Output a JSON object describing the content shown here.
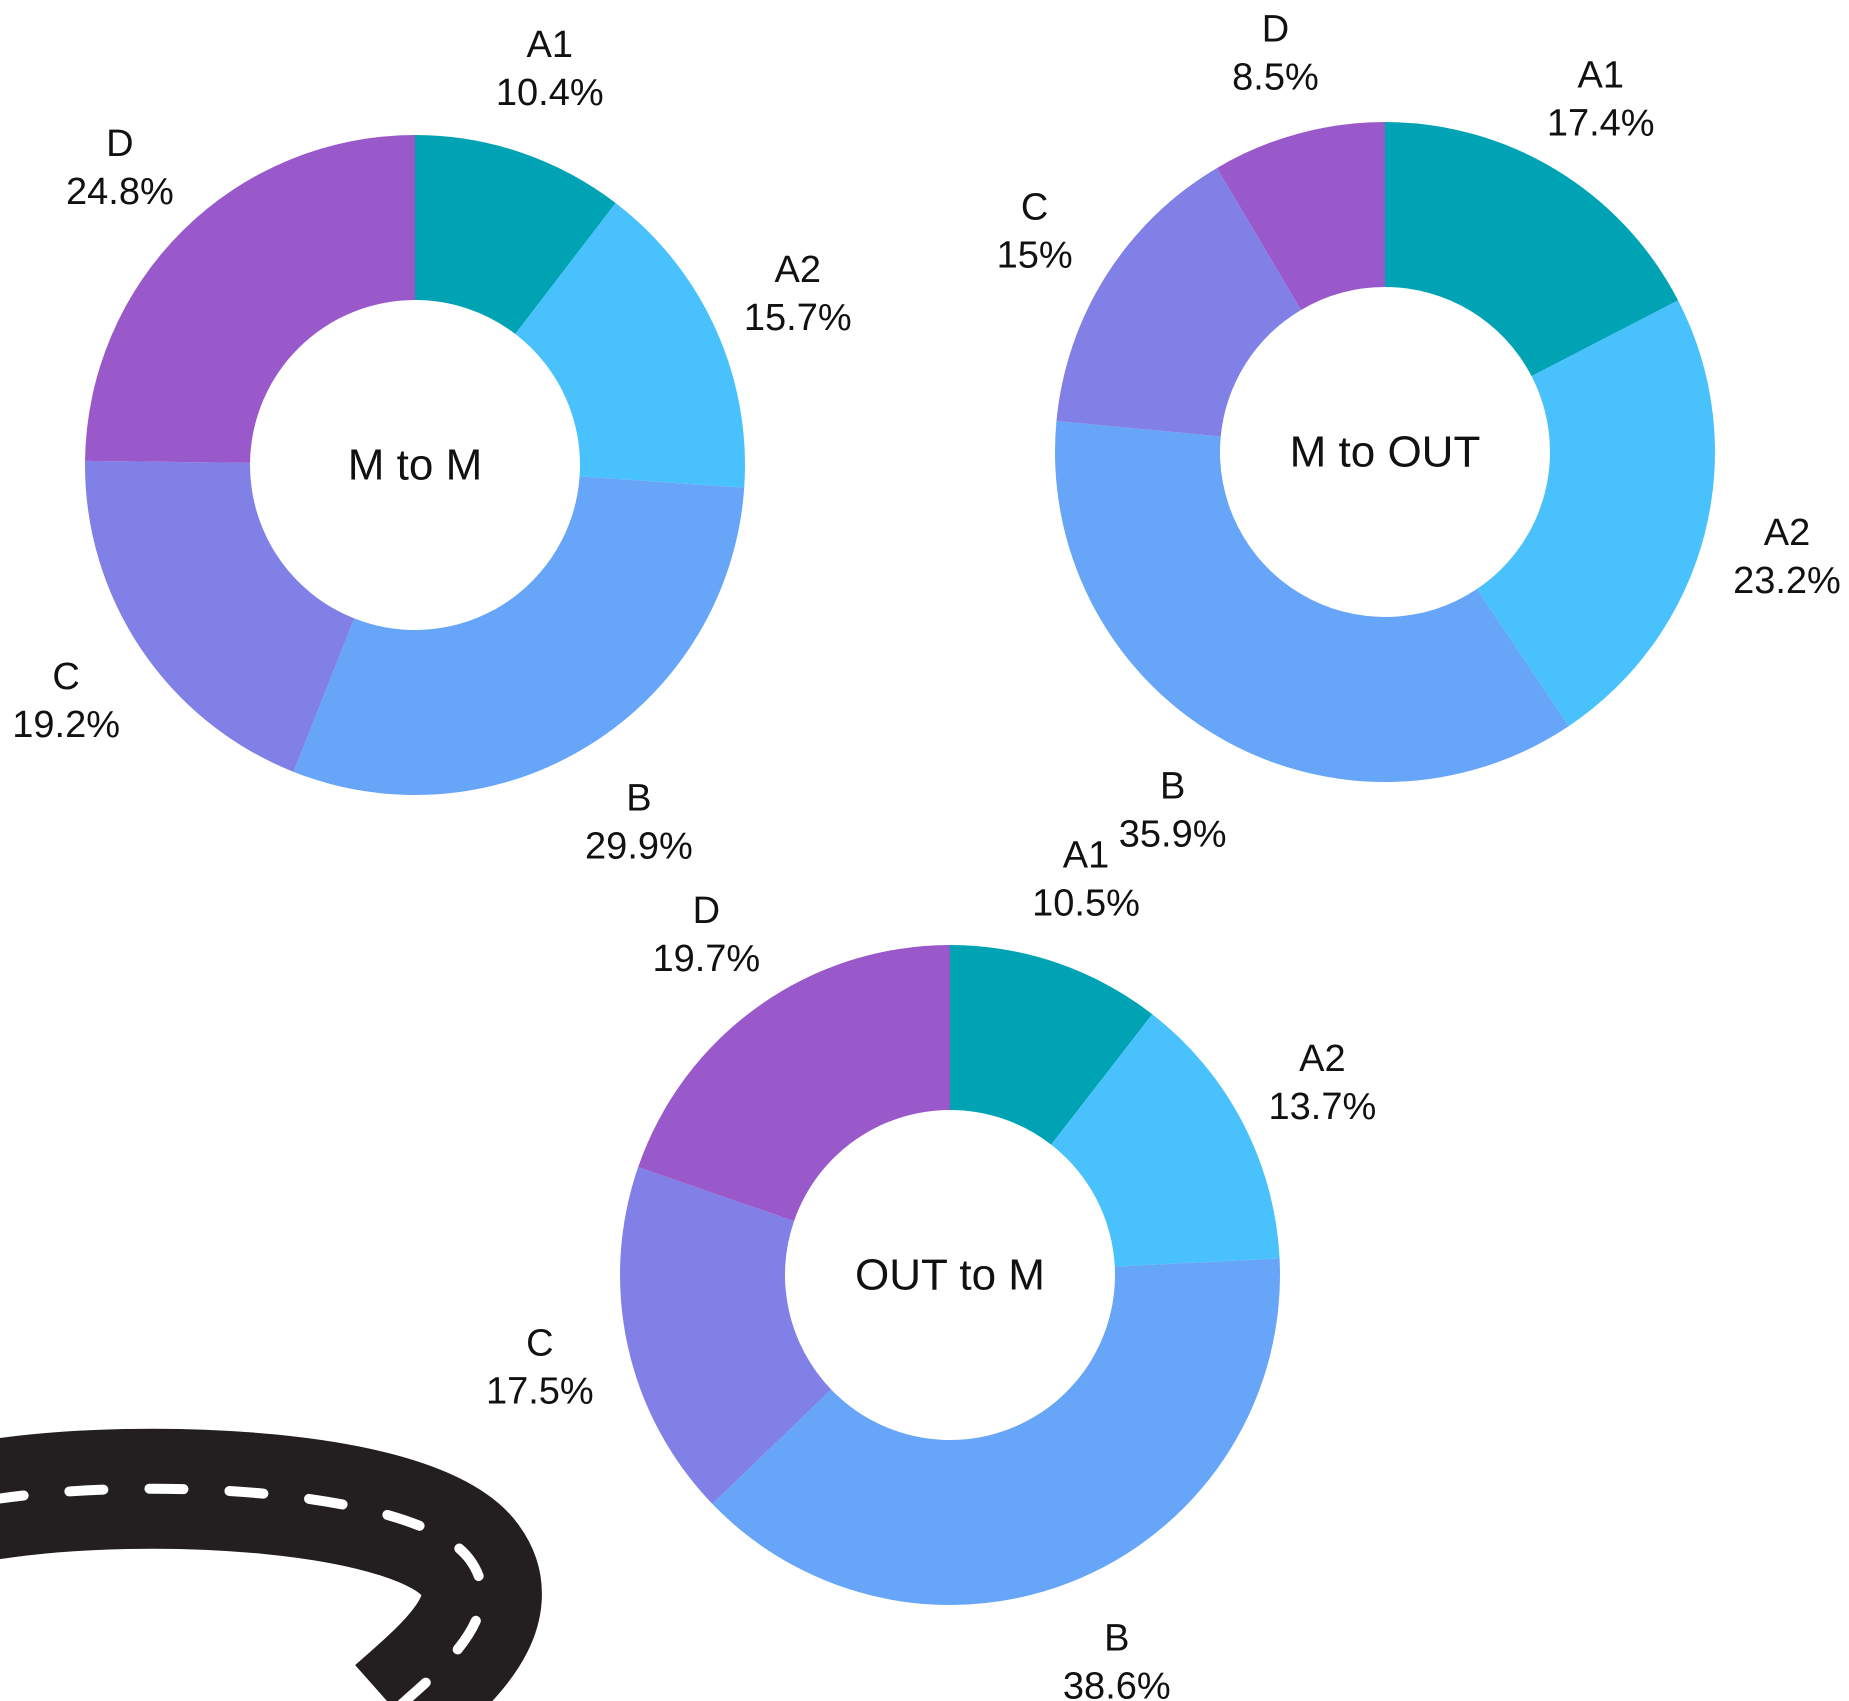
{
  "chart_data": [
    {
      "type": "pie",
      "title": "M to M",
      "categories": [
        "A1",
        "A2",
        "B",
        "C",
        "D"
      ],
      "values": [
        10.4,
        15.7,
        29.9,
        19.2,
        24.8
      ],
      "value_labels": [
        "10.4%",
        "15.7%",
        "29.9%",
        "19.2%",
        "24.8%"
      ]
    },
    {
      "type": "pie",
      "title": "M to OUT",
      "categories": [
        "A1",
        "A2",
        "B",
        "C",
        "D"
      ],
      "values": [
        17.4,
        23.2,
        35.9,
        15,
        8.5
      ],
      "value_labels": [
        "17.4%",
        "23.2%",
        "35.9%",
        "15%",
        "8.5%"
      ]
    },
    {
      "type": "pie",
      "title": "OUT to M",
      "categories": [
        "A1",
        "A2",
        "B",
        "C",
        "D"
      ],
      "values": [
        10.5,
        13.7,
        38.6,
        17.5,
        19.7
      ],
      "value_labels": [
        "10.5%",
        "13.7%",
        "38.6%",
        "17.5%",
        "19.7%"
      ]
    }
  ],
  "colors": {
    "A1": "#00a3b4",
    "A2": "#48c1fc",
    "B": "#66a5f8",
    "C": "#8080e6",
    "D": "#9a59cb",
    "road": "#231f20",
    "road_marking": "#ffffff"
  },
  "decoration": {
    "icon": "road-icon"
  }
}
